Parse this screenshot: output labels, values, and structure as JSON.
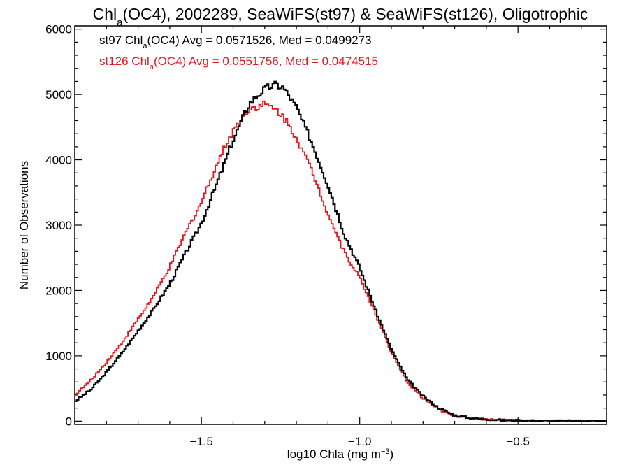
{
  "chart_data": {
    "type": "line",
    "title": {
      "prefix": "Chl",
      "subscript": "a",
      "suffix": "(OC4), 2002289, SeaWiFS(st97) & SeaWiFS(st126), Oligotrophic"
    },
    "xlabel": {
      "prefix": "log10 Chla (mg m",
      "superscript": "−3",
      "suffix": ")"
    },
    "ylabel": "Number of Observations",
    "xlim": [
      -1.9,
      -0.22
    ],
    "ylim": [
      -50,
      6050
    ],
    "x_ticks": [
      {
        "value": -1.5,
        "label": "−1.5"
      },
      {
        "value": -1.0,
        "label": "−1.0"
      },
      {
        "value": -0.5,
        "label": "−0.5"
      }
    ],
    "y_ticks": [
      {
        "value": 0,
        "label": "0"
      },
      {
        "value": 1000,
        "label": "1000"
      },
      {
        "value": 2000,
        "label": "2000"
      },
      {
        "value": 3000,
        "label": "3000"
      },
      {
        "value": 4000,
        "label": "4000"
      },
      {
        "value": 5000,
        "label": "5000"
      },
      {
        "value": 6000,
        "label": "6000"
      }
    ],
    "grid": false,
    "legend_position": "top-left",
    "step_style": "histogram",
    "series": [
      {
        "name_parts": {
          "prefix": "st97 Chl",
          "subscript": "a",
          "suffix": "(OC4) Avg = 0.0571526, Med = 0.0499273"
        },
        "color": "#000000",
        "x": [
          -1.9,
          -1.85,
          -1.8,
          -1.75,
          -1.7,
          -1.65,
          -1.6,
          -1.55,
          -1.5,
          -1.45,
          -1.4,
          -1.35,
          -1.32,
          -1.3,
          -1.28,
          -1.26,
          -1.24,
          -1.2,
          -1.15,
          -1.1,
          -1.05,
          -1.0,
          -0.95,
          -0.9,
          -0.85,
          -0.8,
          -0.75,
          -0.7,
          -0.65,
          -0.6,
          -0.55,
          -0.5,
          -0.45,
          -0.4,
          -0.3,
          -0.22
        ],
        "y": [
          300,
          480,
          750,
          1050,
          1380,
          1720,
          2100,
          2570,
          3030,
          3650,
          4300,
          4850,
          5000,
          5080,
          5130,
          5150,
          5100,
          4800,
          4250,
          3620,
          2880,
          2350,
          1700,
          1100,
          640,
          380,
          200,
          90,
          50,
          30,
          15,
          10,
          5,
          3,
          2,
          1
        ]
      },
      {
        "name_parts": {
          "prefix": "st126 Chl",
          "subscript": "a",
          "suffix": "(OC4) Avg = 0.0551756, Med = 0.0474515"
        },
        "color": "#e8141b",
        "x": [
          -1.9,
          -1.85,
          -1.8,
          -1.75,
          -1.7,
          -1.65,
          -1.6,
          -1.55,
          -1.5,
          -1.45,
          -1.4,
          -1.35,
          -1.32,
          -1.3,
          -1.28,
          -1.26,
          -1.24,
          -1.2,
          -1.15,
          -1.1,
          -1.05,
          -1.0,
          -0.95,
          -0.9,
          -0.85,
          -0.8,
          -0.75,
          -0.7,
          -0.65,
          -0.6,
          -0.55,
          -0.5,
          -0.45,
          -0.4,
          -0.3,
          -0.22
        ],
        "y": [
          400,
          620,
          900,
          1210,
          1560,
          1920,
          2360,
          2880,
          3350,
          3950,
          4450,
          4780,
          4820,
          4850,
          4800,
          4750,
          4650,
          4350,
          3820,
          3180,
          2600,
          2200,
          1650,
          1050,
          600,
          350,
          180,
          80,
          45,
          28,
          15,
          10,
          5,
          3,
          2,
          1
        ]
      }
    ]
  }
}
